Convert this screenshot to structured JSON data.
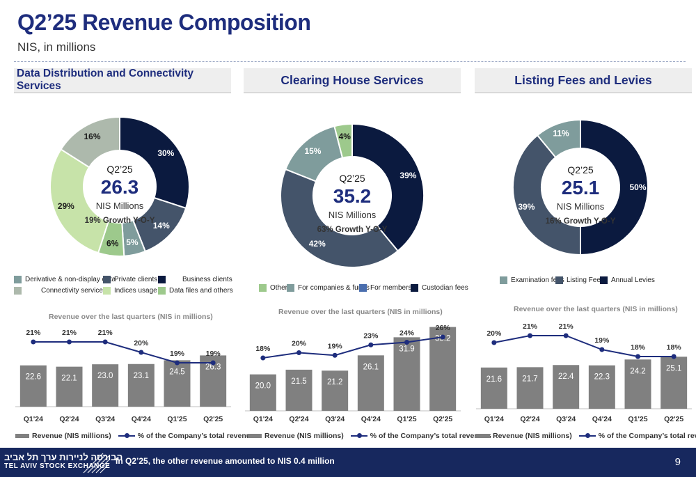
{
  "header": {
    "title": "Q2’25 Revenue Composition",
    "subtitle": "NIS, in millions"
  },
  "colors": {
    "navy": "#0b1a3f",
    "slate": "#44546a",
    "teal_gray": "#7f9c9c",
    "light_green": "#c7e3a9",
    "green": "#9dc98c",
    "gray_green": "#adb9ac",
    "blue": "#4a6eae",
    "bar": "#808080",
    "line": "#1e2d7d"
  },
  "chart_data": [
    {
      "type": "pie",
      "title": "Data Distribution and Connectivity Services",
      "center": {
        "period": "Q2’25",
        "value": "26.3",
        "unit": "NIS Millions",
        "growth": "19% Growth Y-O-Y"
      },
      "slices": [
        {
          "name": "Business clients",
          "value": 30,
          "label": "30%",
          "color": "#0b1a3f"
        },
        {
          "name": "Private clients",
          "value": 14,
          "label": "14%",
          "color": "#44546a"
        },
        {
          "name": "Derivative & non-display data",
          "value": 5,
          "label": "5%",
          "color": "#7f9c9c"
        },
        {
          "name": "Data files and others",
          "value": 6,
          "label": "6%",
          "color": "#9dc98c"
        },
        {
          "name": "Indices usage",
          "value": 29,
          "label": "29%",
          "color": "#c7e3a9"
        },
        {
          "name": "Connectivity services",
          "value": 16,
          "label": "16%",
          "color": "#adb9ac"
        }
      ],
      "legend": [
        "Derivative & non-display data",
        "Private clients",
        "Business clients",
        "Connectivity services",
        "Indices usage",
        "Data files and others"
      ]
    },
    {
      "type": "pie",
      "title": "Clearing House Services",
      "center": {
        "period": "Q2’25",
        "value": "35.2",
        "unit": "NIS Millions",
        "growth": "63% Growth Y-O-Y"
      },
      "slices": [
        {
          "name": "Custodian fees",
          "value": 39,
          "label": "39%",
          "color": "#0b1a3f"
        },
        {
          "name": "For members",
          "value": 42,
          "label": "42%",
          "color": "#44546a"
        },
        {
          "name": "For companies & funds",
          "value": 15,
          "label": "15%",
          "color": "#7f9c9c"
        },
        {
          "name": "Other",
          "value": 4,
          "label": "4%",
          "color": "#9dc98c"
        }
      ],
      "legend": [
        "Other",
        "For companies & funds",
        "For members",
        "Custodian fees"
      ]
    },
    {
      "type": "pie",
      "title": "Listing Fees and Levies",
      "center": {
        "period": "Q2’25",
        "value": "25.1",
        "unit": "NIS Millions",
        "growth": "16% Growth Y-O-Y"
      },
      "slices": [
        {
          "name": "Annual Levies",
          "value": 50,
          "label": "50%",
          "color": "#0b1a3f"
        },
        {
          "name": "Listing Fees",
          "value": 39,
          "label": "39%",
          "color": "#44546a"
        },
        {
          "name": "Examination fees",
          "value": 11,
          "label": "11%",
          "color": "#7f9c9c"
        }
      ],
      "legend": [
        "Examination fees",
        "Listing Fees",
        "Annual Levies"
      ]
    },
    {
      "type": "bar",
      "title": "Revenue over the last quarters (NIS in millions)",
      "categories": [
        "Q1'24",
        "Q2'24",
        "Q3'24",
        "Q4'24",
        "Q1'25",
        "Q2'25"
      ],
      "series": [
        {
          "name": "Revenue (NIS millions)",
          "values": [
            22.6,
            22.1,
            23.0,
            23.1,
            24.5,
            26.3
          ]
        },
        {
          "name": "% of the Company’s total revenues",
          "values": [
            21,
            21,
            21,
            20,
            19,
            19
          ],
          "labels": [
            "21%",
            "21%",
            "21%",
            "20%",
            "19%",
            "19%"
          ]
        }
      ]
    },
    {
      "type": "bar",
      "title": "Revenue over the last quarters (NIS in millions)",
      "categories": [
        "Q1'24",
        "Q2'24",
        "Q3'24",
        "Q4'24",
        "Q1'25",
        "Q2'25"
      ],
      "series": [
        {
          "name": "Revenue (NIS millions)",
          "values": [
            20.0,
            21.5,
            21.2,
            26.1,
            31.9,
            35.2
          ]
        },
        {
          "name": "% of the Company’s total revenues",
          "values": [
            18,
            20,
            19,
            23,
            24,
            26
          ],
          "labels": [
            "18%",
            "20%",
            "19%",
            "23%",
            "24%",
            "26%"
          ]
        }
      ]
    },
    {
      "type": "bar",
      "title": "Revenue over the last quarters (NIS in millions)",
      "categories": [
        "Q1'24",
        "Q2'24",
        "Q3'24",
        "Q4'24",
        "Q1'25",
        "Q2'25"
      ],
      "series": [
        {
          "name": "Revenue (NIS millions)",
          "values": [
            21.6,
            21.7,
            22.4,
            22.3,
            24.2,
            25.1
          ]
        },
        {
          "name": "% of the Company’s total revenues",
          "values": [
            20,
            21,
            21,
            19,
            18,
            18
          ],
          "labels": [
            "20%",
            "21%",
            "21%",
            "19%",
            "18%",
            "18%"
          ]
        }
      ]
    }
  ],
  "footer": {
    "logo_hebrew": "הבורסה לניירות ערך תל אביב",
    "logo_english": "TEL AVIV STOCK EXCHANGE",
    "note": "In Q2’25, the other revenue amounted to NIS 0.4 million",
    "page": "9"
  }
}
